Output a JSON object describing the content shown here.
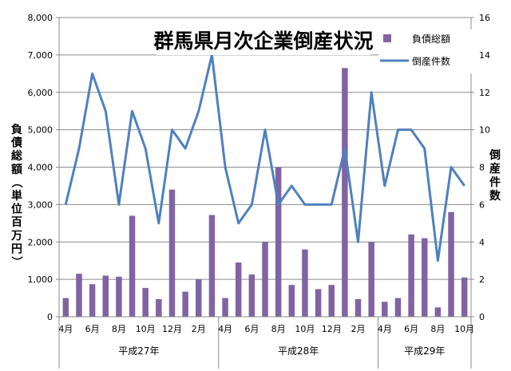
{
  "chart_data": {
    "type": "bar+line",
    "title": "群馬県月次企業倒産状況",
    "x_tick_labels": [
      "4月",
      "6月",
      "8月",
      "10月",
      "12月",
      "2月",
      "4月",
      "6月",
      "8月",
      "10月",
      "12月",
      "2月",
      "4月",
      "6月",
      "8月",
      "10月"
    ],
    "year_groups": [
      {
        "label": "平成27年",
        "months": 12
      },
      {
        "label": "平成28年",
        "months": 12
      },
      {
        "label": "平成29年",
        "months": 7
      }
    ],
    "y_left": {
      "label": "負債総額（単位百万円）",
      "min": 0,
      "max": 8000,
      "step": 1000,
      "tick_labels": [
        "0",
        "1,000",
        "2,000",
        "3,000",
        "4,000",
        "5,000",
        "6,000",
        "7,000",
        "8,000"
      ]
    },
    "y_right": {
      "label": "倒産件数",
      "min": 0,
      "max": 16,
      "step": 2,
      "tick_labels": [
        "0",
        "2",
        "4",
        "6",
        "8",
        "10",
        "12",
        "14",
        "16"
      ]
    },
    "series": [
      {
        "name": "負債総額",
        "type": "bar",
        "axis": "left",
        "color": "#8064a2",
        "values": [
          500,
          1150,
          870,
          1100,
          1070,
          2700,
          770,
          470,
          3400,
          670,
          1000,
          2720,
          500,
          1450,
          1130,
          2000,
          4000,
          850,
          1800,
          740,
          850,
          6650,
          470,
          2000,
          400,
          500,
          2200,
          2100,
          250,
          2800,
          1050
        ]
      },
      {
        "name": "倒産件数",
        "type": "line",
        "axis": "right",
        "color": "#4f81bd",
        "values": [
          6,
          9,
          13,
          11,
          6,
          11,
          9,
          5,
          10,
          9,
          11,
          14,
          8,
          5,
          6,
          10,
          6,
          7,
          6,
          6,
          6,
          9,
          4,
          12,
          7,
          10,
          10,
          9,
          3,
          8,
          7
        ]
      }
    ],
    "legend_position": "top-right",
    "grid": "horizontal"
  }
}
